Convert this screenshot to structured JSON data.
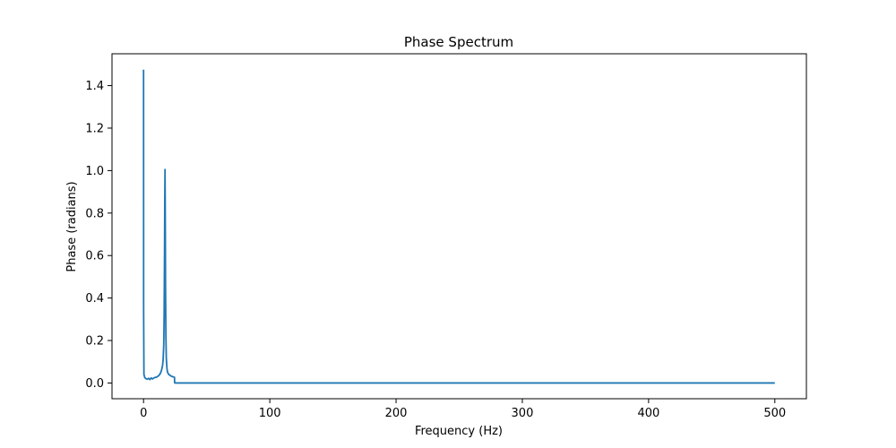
{
  "chart_data": {
    "type": "line",
    "title": "Phase Spectrum",
    "xlabel": "Frequency (Hz)",
    "ylabel": "Phase (radians)",
    "xlim": [
      -25,
      525
    ],
    "ylim": [
      -0.074,
      1.55
    ],
    "grid": false,
    "line_color": "#1f77b4",
    "xticks": [
      0,
      100,
      200,
      300,
      400,
      500
    ],
    "xtick_labels": [
      "0",
      "100",
      "200",
      "300",
      "400",
      "500"
    ],
    "yticks": [
      0.0,
      0.2,
      0.4,
      0.6,
      0.8,
      1.0,
      1.2,
      1.4
    ],
    "ytick_labels": [
      "0.0",
      "0.2",
      "0.4",
      "0.6",
      "0.8",
      "1.0",
      "1.2",
      "1.4"
    ],
    "series": [
      {
        "x": [
          0,
          0.05,
          0.3,
          1,
          2,
          3,
          4,
          5,
          6,
          7,
          8,
          9,
          10,
          11,
          12,
          13,
          14,
          15,
          15.5,
          16,
          16.3,
          16.6,
          16.8,
          17,
          17.2,
          17.4,
          17.7,
          18,
          18.5,
          19,
          20,
          21,
          22,
          23,
          24,
          24.5,
          24.6,
          25,
          100,
          200,
          300,
          400,
          500
        ],
        "values": [
          1.475,
          0.35,
          0.04,
          0.025,
          0.02,
          0.018,
          0.022,
          0.016,
          0.024,
          0.019,
          0.023,
          0.026,
          0.027,
          0.03,
          0.035,
          0.042,
          0.055,
          0.08,
          0.11,
          0.18,
          0.32,
          0.6,
          0.85,
          1.005,
          0.78,
          0.45,
          0.22,
          0.12,
          0.07,
          0.05,
          0.04,
          0.036,
          0.032,
          0.03,
          0.028,
          0.027,
          0.001,
          0.0,
          0.0,
          0.0,
          0.0,
          0.0,
          0.0
        ]
      }
    ]
  }
}
